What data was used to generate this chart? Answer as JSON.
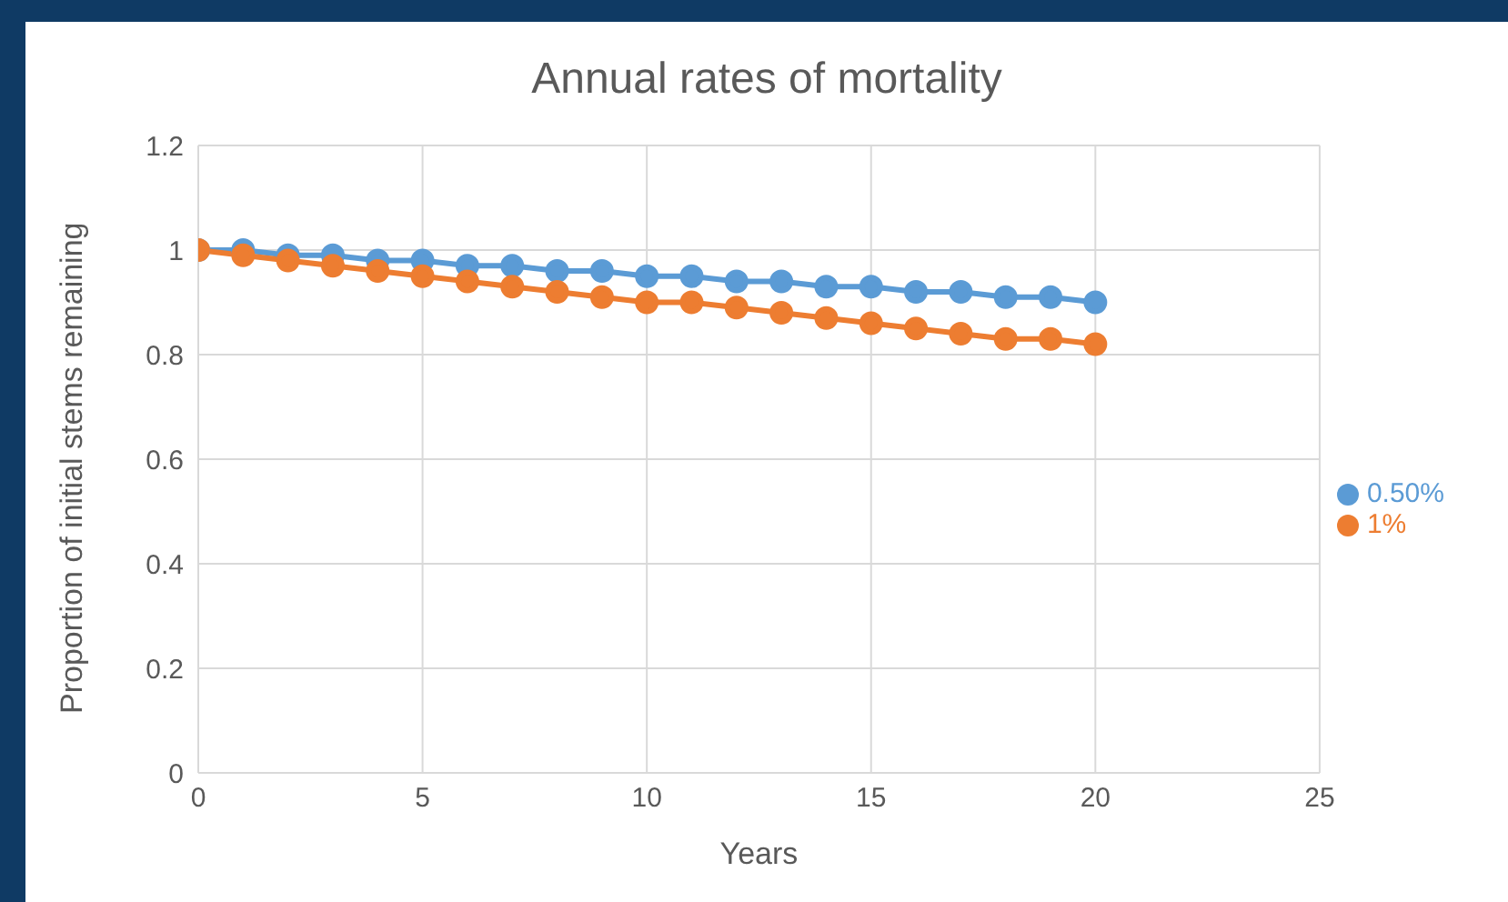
{
  "chart_data": {
    "type": "line",
    "title": "Annual rates of mortality",
    "xlabel": "Years",
    "ylabel": "Proportion of initial stems remaining",
    "x": [
      0,
      1,
      2,
      3,
      4,
      5,
      6,
      7,
      8,
      9,
      10,
      11,
      12,
      13,
      14,
      15,
      16,
      17,
      18,
      19,
      20
    ],
    "series": [
      {
        "name": "0.50%",
        "color": "#5b9bd5",
        "values": [
          1,
          1,
          0.99,
          0.99,
          0.98,
          0.98,
          0.97,
          0.97,
          0.96,
          0.96,
          0.95,
          0.95,
          0.94,
          0.94,
          0.93,
          0.93,
          0.92,
          0.92,
          0.91,
          0.91,
          0.9
        ]
      },
      {
        "name": "1%",
        "color": "#ed7d31",
        "values": [
          1,
          0.99,
          0.98,
          0.97,
          0.96,
          0.95,
          0.94,
          0.93,
          0.92,
          0.91,
          0.9,
          0.9,
          0.89,
          0.88,
          0.87,
          0.86,
          0.85,
          0.84,
          0.83,
          0.83,
          0.82
        ]
      }
    ],
    "xlim": [
      0,
      25
    ],
    "xticks": [
      0,
      5,
      10,
      15,
      20,
      25
    ],
    "ylim": [
      0,
      1.2
    ],
    "yticks": [
      0,
      0.2,
      0.4,
      0.6,
      0.8,
      1,
      1.2
    ],
    "grid": true,
    "legend": "right",
    "marker": "circle",
    "line_style": "solid"
  }
}
